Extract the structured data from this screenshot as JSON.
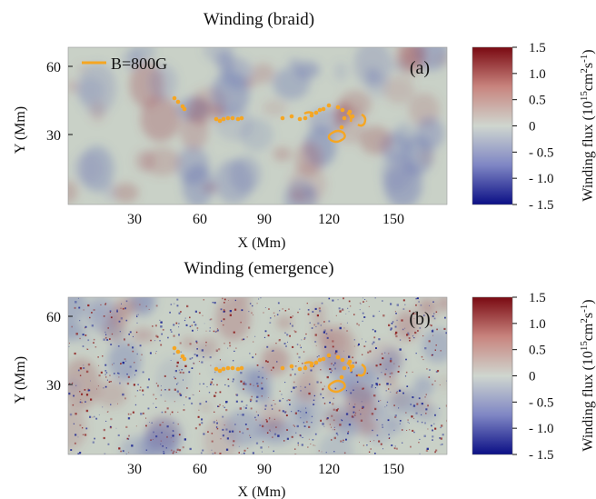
{
  "panels": [
    {
      "title": "Winding (braid)",
      "panel_label": "(a)",
      "legend_label": "B=800G",
      "xlabel": "X (Mm)",
      "ylabel": "Y (Mm)",
      "xticks": [
        "30",
        "60",
        "90",
        "120",
        "150"
      ],
      "yticks": [
        "30",
        "60"
      ],
      "colorbar": {
        "label_main": "Winding flux (10",
        "label_exp1": "15",
        "label_mid": "cm",
        "label_exp2": "2",
        "label_s": "s",
        "label_exp3": "-1",
        "label_close": ")",
        "ticks": [
          "1.5",
          "1.0",
          "0.5",
          "0",
          "- 0.5",
          "- 1.0",
          "- 1.5"
        ]
      }
    },
    {
      "title": "Winding (emergence)",
      "panel_label": "(b)",
      "xlabel": "X (Mm)",
      "ylabel": "Y (Mm)",
      "xticks": [
        "30",
        "60",
        "90",
        "120",
        "150"
      ],
      "yticks": [
        "30",
        "60"
      ],
      "colorbar": {
        "label_main": "Winding flux (10",
        "label_exp1": "15",
        "label_mid": "cm",
        "label_exp2": "2",
        "label_s": "s",
        "label_exp3": "-1",
        "label_close": ")",
        "ticks": [
          "1.5",
          "1.0",
          "0.5",
          "0",
          "- 0.5",
          "- 1.0",
          "- 1.5"
        ]
      }
    }
  ],
  "colors": {
    "contour": "#f5a623",
    "pos": "#8b0000",
    "neg": "#00008b",
    "mid": "#c9d2c9"
  }
}
